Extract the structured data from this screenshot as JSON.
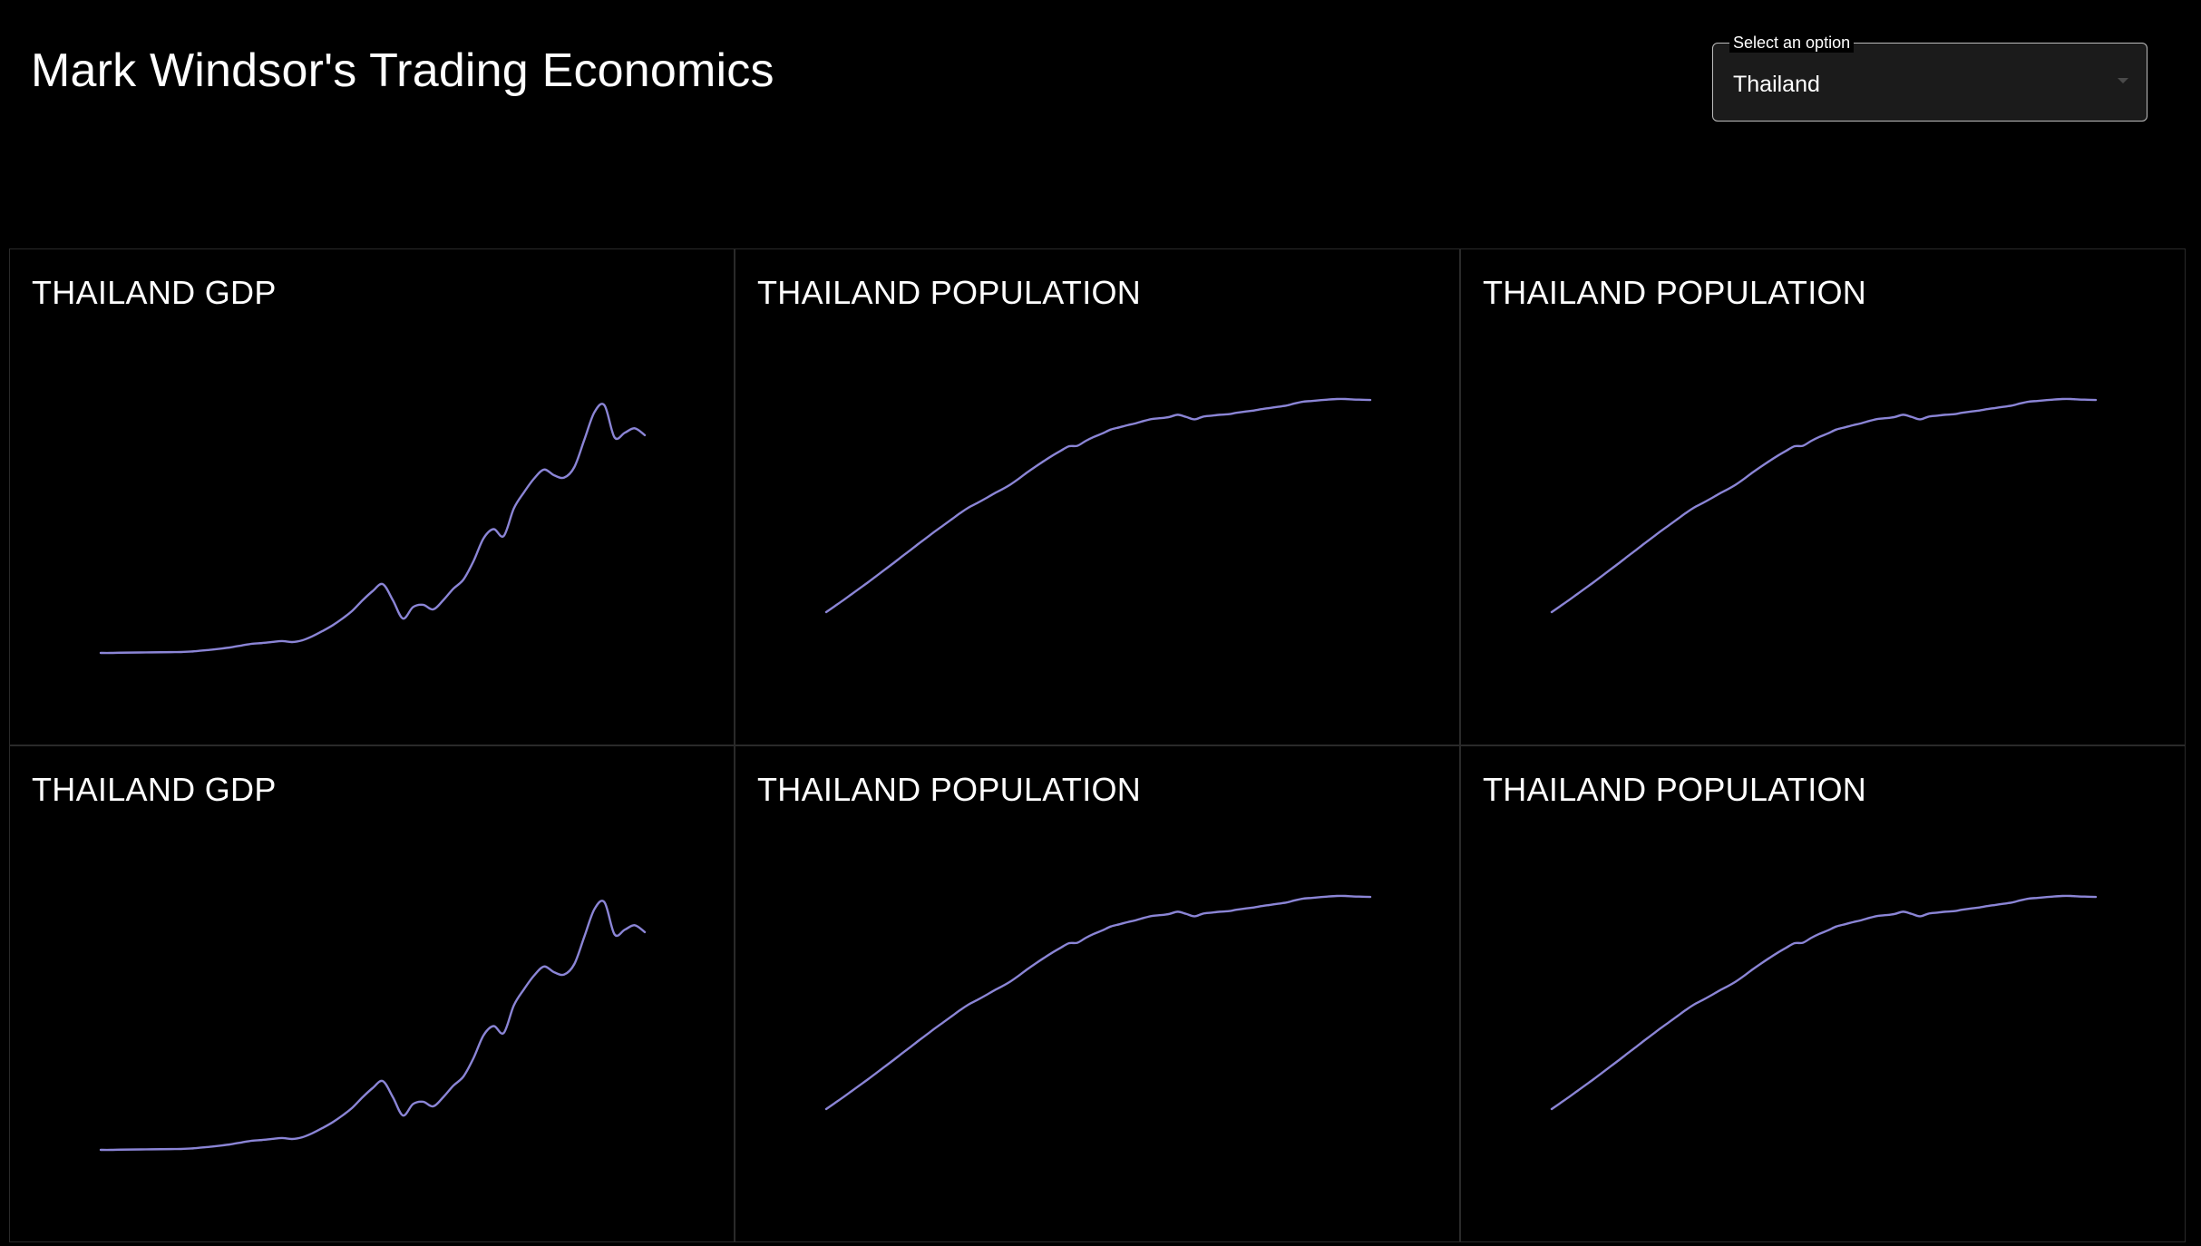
{
  "header": {
    "title": "Mark Windsor's Trading Economics"
  },
  "country_select": {
    "label": "Select an option",
    "value": "Thailand",
    "caret_icon": "chevron-down-icon"
  },
  "colors": {
    "background": "#000000",
    "line": "#8b85d6",
    "card_border": "#2a2a2a",
    "select_bg": "#1b1b1b"
  },
  "chart_data": [
    {
      "type": "line",
      "title": "THAILAND GDP",
      "values": [
        0,
        0,
        0.2,
        0.3,
        0.4,
        0.5,
        0.6,
        0.7,
        0.8,
        1.2,
        2,
        2.8,
        3.8,
        5,
        6.5,
        8,
        8.6,
        9.5,
        10.3,
        9.5,
        11,
        14.5,
        19,
        24,
        30,
        37,
        46,
        54,
        60,
        46,
        30,
        40,
        42,
        38,
        46,
        56,
        64,
        80,
        100,
        108,
        102,
        126,
        140,
        152,
        160,
        155,
        153,
        162,
        186,
        210,
        216,
        188,
        192,
        196,
        190
      ]
    },
    {
      "type": "line",
      "title": "THAILAND POPULATION",
      "values": [
        0,
        2.4,
        4.8,
        7.3,
        9.8,
        12.3,
        14.9,
        17.5,
        20.1,
        22.8,
        25.4,
        28.1,
        30.7,
        33.3,
        35.8,
        38.3,
        40.8,
        43.1,
        44.9,
        46.8,
        48.8,
        50.6,
        52.6,
        55,
        57.6,
        60,
        62.3,
        64.5,
        66.5,
        68.4,
        68.6,
        70.6,
        72.3,
        73.7,
        75.3,
        76.2,
        77.1,
        77.9,
        78.9,
        79.7,
        80,
        80.5,
        81.4,
        80.5,
        79.5,
        80.6,
        81,
        81.4,
        81.6,
        82.2,
        82.7,
        83.1,
        83.7,
        84.2,
        84.7,
        85.2,
        86.1,
        86.8,
        87.1,
        87.4,
        87.7,
        87.9,
        87.9,
        87.7,
        87.6,
        87.5
      ]
    },
    {
      "type": "line",
      "title": "THAILAND POPULATION",
      "values": [
        0,
        2.4,
        4.8,
        7.3,
        9.8,
        12.3,
        14.9,
        17.5,
        20.1,
        22.8,
        25.4,
        28.1,
        30.7,
        33.3,
        35.8,
        38.3,
        40.8,
        43.1,
        44.9,
        46.8,
        48.8,
        50.6,
        52.6,
        55,
        57.6,
        60,
        62.3,
        64.5,
        66.5,
        68.4,
        68.6,
        70.6,
        72.3,
        73.7,
        75.3,
        76.2,
        77.1,
        77.9,
        78.9,
        79.7,
        80,
        80.5,
        81.4,
        80.5,
        79.5,
        80.6,
        81,
        81.4,
        81.6,
        82.2,
        82.7,
        83.1,
        83.7,
        84.2,
        84.7,
        85.2,
        86.1,
        86.8,
        87.1,
        87.4,
        87.7,
        87.9,
        87.9,
        87.7,
        87.6,
        87.5
      ]
    },
    {
      "type": "line",
      "title": "THAILAND GDP",
      "values": [
        0,
        0,
        0.2,
        0.3,
        0.4,
        0.5,
        0.6,
        0.7,
        0.8,
        1.2,
        2,
        2.8,
        3.8,
        5,
        6.5,
        8,
        8.6,
        9.5,
        10.3,
        9.5,
        11,
        14.5,
        19,
        24,
        30,
        37,
        46,
        54,
        60,
        46,
        30,
        40,
        42,
        38,
        46,
        56,
        64,
        80,
        100,
        108,
        102,
        126,
        140,
        152,
        160,
        155,
        153,
        162,
        186,
        210,
        216,
        188,
        192,
        196,
        190
      ]
    },
    {
      "type": "line",
      "title": "THAILAND POPULATION",
      "values": [
        0,
        2.4,
        4.8,
        7.3,
        9.8,
        12.3,
        14.9,
        17.5,
        20.1,
        22.8,
        25.4,
        28.1,
        30.7,
        33.3,
        35.8,
        38.3,
        40.8,
        43.1,
        44.9,
        46.8,
        48.8,
        50.6,
        52.6,
        55,
        57.6,
        60,
        62.3,
        64.5,
        66.5,
        68.4,
        68.6,
        70.6,
        72.3,
        73.7,
        75.3,
        76.2,
        77.1,
        77.9,
        78.9,
        79.7,
        80,
        80.5,
        81.4,
        80.5,
        79.5,
        80.6,
        81,
        81.4,
        81.6,
        82.2,
        82.7,
        83.1,
        83.7,
        84.2,
        84.7,
        85.2,
        86.1,
        86.8,
        87.1,
        87.4,
        87.7,
        87.9,
        87.9,
        87.7,
        87.6,
        87.5
      ]
    },
    {
      "type": "line",
      "title": "THAILAND POPULATION",
      "values": [
        0,
        2.4,
        4.8,
        7.3,
        9.8,
        12.3,
        14.9,
        17.5,
        20.1,
        22.8,
        25.4,
        28.1,
        30.7,
        33.3,
        35.8,
        38.3,
        40.8,
        43.1,
        44.9,
        46.8,
        48.8,
        50.6,
        52.6,
        55,
        57.6,
        60,
        62.3,
        64.5,
        66.5,
        68.4,
        68.6,
        70.6,
        72.3,
        73.7,
        75.3,
        76.2,
        77.1,
        77.9,
        78.9,
        79.7,
        80,
        80.5,
        81.4,
        80.5,
        79.5,
        80.6,
        81,
        81.4,
        81.6,
        82.2,
        82.7,
        83.1,
        83.7,
        84.2,
        84.7,
        85.2,
        86.1,
        86.8,
        87.1,
        87.4,
        87.7,
        87.9,
        87.9,
        87.7,
        87.6,
        87.5
      ]
    }
  ]
}
